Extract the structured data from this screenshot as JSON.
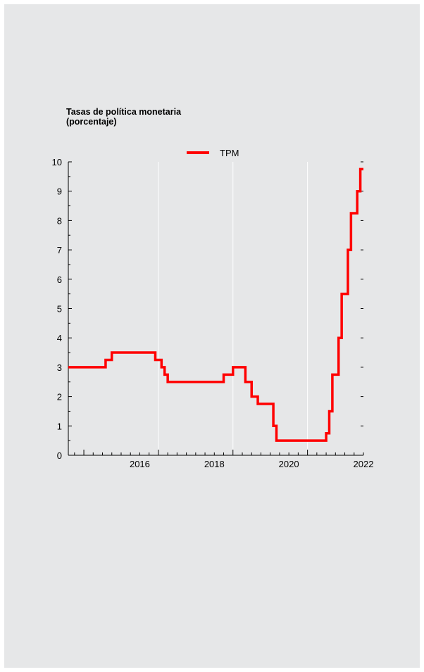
{
  "chart_data": {
    "type": "line",
    "title": "Tasas de política monetaria",
    "subtitle": "(porcentaje)",
    "xlabel": "",
    "ylabel": "",
    "ylim": [
      0,
      10
    ],
    "y_ticks": [
      0,
      1,
      2,
      3,
      4,
      5,
      6,
      7,
      8,
      9,
      10
    ],
    "x_ticks": [
      "2016",
      "2018",
      "2020",
      "2022"
    ],
    "xlim": [
      "2014-08",
      "2022-07"
    ],
    "grid": "vertical",
    "legend_position": "top-center",
    "colors": {
      "TPM": "#ff0000",
      "background": "#e6e7e8",
      "grid": "#ffffff"
    },
    "series": [
      {
        "name": "TPM",
        "points": [
          [
            "2014-08",
            3.0
          ],
          [
            "2015-08",
            3.25
          ],
          [
            "2015-10",
            3.5
          ],
          [
            "2016-12",
            3.25
          ],
          [
            "2017-02",
            3.0
          ],
          [
            "2017-03",
            2.75
          ],
          [
            "2017-04",
            2.5
          ],
          [
            "2018-10",
            2.75
          ],
          [
            "2019-01",
            3.0
          ],
          [
            "2019-05",
            2.5
          ],
          [
            "2019-07",
            2.0
          ],
          [
            "2019-09",
            1.75
          ],
          [
            "2020-02",
            1.0
          ],
          [
            "2020-03",
            0.5
          ],
          [
            "2021-07",
            0.75
          ],
          [
            "2021-08",
            1.5
          ],
          [
            "2021-09",
            2.75
          ],
          [
            "2021-11",
            4.0
          ],
          [
            "2021-12",
            5.5
          ],
          [
            "2022-02",
            7.0
          ],
          [
            "2022-03",
            8.25
          ],
          [
            "2022-05",
            9.0
          ],
          [
            "2022-06",
            9.75
          ],
          [
            "2022-07",
            9.75
          ]
        ]
      }
    ]
  }
}
